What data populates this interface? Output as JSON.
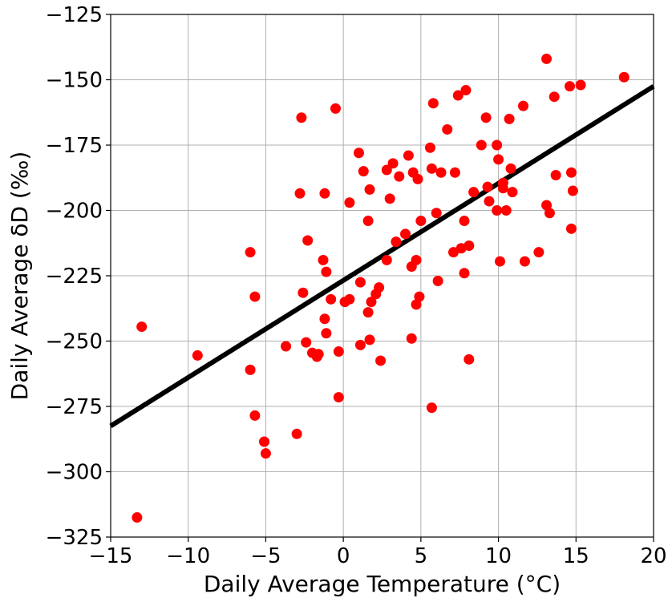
{
  "chart_data": {
    "type": "scatter",
    "xlabel": "Daily Average Temperature (°C)",
    "ylabel": "Daily Average δD (‰)",
    "xlim": [
      -15,
      20
    ],
    "ylim": [
      -325,
      -125
    ],
    "xticks": [
      -15,
      -10,
      -5,
      0,
      5,
      10,
      15,
      20
    ],
    "yticks": [
      -325,
      -300,
      -275,
      -250,
      -225,
      -200,
      -175,
      -150,
      -125
    ],
    "xtick_labels": [
      "−15",
      "−10",
      "−5",
      "0",
      "5",
      "10",
      "15",
      "20"
    ],
    "ytick_labels": [
      "−325",
      "−300",
      "−275",
      "−250",
      "−225",
      "−200",
      "−175",
      "−150",
      "−125"
    ],
    "grid": true,
    "point_color": "#ff0000",
    "line_color": "#000000",
    "points": [
      [
        -13.3,
        -317.5
      ],
      [
        -13.0,
        -244.5
      ],
      [
        -9.4,
        -255.5
      ],
      [
        -6.0,
        -261.0
      ],
      [
        -6.0,
        -216.0
      ],
      [
        -5.7,
        -233.0
      ],
      [
        -5.7,
        -278.5
      ],
      [
        -5.1,
        -288.5
      ],
      [
        -5.0,
        -293.0
      ],
      [
        -3.7,
        -252.0
      ],
      [
        -3.0,
        -285.5
      ],
      [
        -2.8,
        -193.5
      ],
      [
        -2.7,
        -164.5
      ],
      [
        -2.6,
        -231.5
      ],
      [
        -2.4,
        -250.5
      ],
      [
        -2.3,
        -211.5
      ],
      [
        -2.0,
        -254.5
      ],
      [
        -1.7,
        -256.0
      ],
      [
        -1.6,
        -255.0
      ],
      [
        -1.3,
        -219.0
      ],
      [
        -1.2,
        -193.5
      ],
      [
        -1.2,
        -241.5
      ],
      [
        -1.1,
        -247.0
      ],
      [
        -1.1,
        -223.5
      ],
      [
        -0.8,
        -234.0
      ],
      [
        -0.5,
        -161.0
      ],
      [
        -0.3,
        -254.0
      ],
      [
        -0.3,
        -271.5
      ],
      [
        0.1,
        -235.0
      ],
      [
        0.4,
        -234.0
      ],
      [
        0.4,
        -197.0
      ],
      [
        1.0,
        -178.0
      ],
      [
        1.1,
        -227.5
      ],
      [
        1.1,
        -251.5
      ],
      [
        1.3,
        -185.0
      ],
      [
        1.6,
        -204.0
      ],
      [
        1.6,
        -239.0
      ],
      [
        1.7,
        -192.0
      ],
      [
        1.7,
        -249.5
      ],
      [
        1.8,
        -235.0
      ],
      [
        2.1,
        -232.0
      ],
      [
        2.3,
        -229.5
      ],
      [
        2.4,
        -257.5
      ],
      [
        2.8,
        -219.0
      ],
      [
        2.8,
        -184.5
      ],
      [
        3.0,
        -195.5
      ],
      [
        3.2,
        -182.0
      ],
      [
        3.4,
        -212.0
      ],
      [
        3.6,
        -187.0
      ],
      [
        4.0,
        -209.0
      ],
      [
        4.2,
        -179.0
      ],
      [
        4.4,
        -249.0
      ],
      [
        4.4,
        -221.5
      ],
      [
        4.5,
        -185.5
      ],
      [
        4.7,
        -219.0
      ],
      [
        4.7,
        -236.0
      ],
      [
        4.8,
        -188.0
      ],
      [
        4.9,
        -233.0
      ],
      [
        5.0,
        -204.0
      ],
      [
        5.6,
        -176.0
      ],
      [
        5.7,
        -184.0
      ],
      [
        5.7,
        -275.5
      ],
      [
        5.8,
        -159.0
      ],
      [
        6.0,
        -201.0
      ],
      [
        6.1,
        -227.0
      ],
      [
        6.3,
        -185.5
      ],
      [
        6.7,
        -169.0
      ],
      [
        7.1,
        -216.0
      ],
      [
        7.2,
        -185.5
      ],
      [
        7.4,
        -156.0
      ],
      [
        7.6,
        -214.5
      ],
      [
        7.8,
        -204.0
      ],
      [
        7.8,
        -224.0
      ],
      [
        7.9,
        -154.0
      ],
      [
        8.1,
        -213.5
      ],
      [
        8.1,
        -257.0
      ],
      [
        8.4,
        -193.0
      ],
      [
        8.9,
        -175.0
      ],
      [
        9.2,
        -164.5
      ],
      [
        9.3,
        -191.0
      ],
      [
        9.4,
        -196.5
      ],
      [
        9.9,
        -200.0
      ],
      [
        9.9,
        -175.0
      ],
      [
        10.0,
        -180.5
      ],
      [
        10.1,
        -219.5
      ],
      [
        10.3,
        -189.5
      ],
      [
        10.3,
        -191.5
      ],
      [
        10.5,
        -200.0
      ],
      [
        10.7,
        -165.0
      ],
      [
        10.8,
        -184.0
      ],
      [
        10.9,
        -193.0
      ],
      [
        11.6,
        -160.0
      ],
      [
        11.7,
        -219.5
      ],
      [
        12.6,
        -216.0
      ],
      [
        13.1,
        -142.0
      ],
      [
        13.1,
        -198.0
      ],
      [
        13.3,
        -201.0
      ],
      [
        13.6,
        -156.5
      ],
      [
        13.7,
        -186.5
      ],
      [
        14.6,
        -152.5
      ],
      [
        14.7,
        -185.5
      ],
      [
        14.7,
        -207.0
      ],
      [
        14.8,
        -192.5
      ],
      [
        15.3,
        -152.0
      ],
      [
        18.1,
        -149.0
      ]
    ],
    "fit_line": {
      "x": [
        -15,
        20
      ],
      "y": [
        -282.5,
        -152.5
      ]
    }
  }
}
